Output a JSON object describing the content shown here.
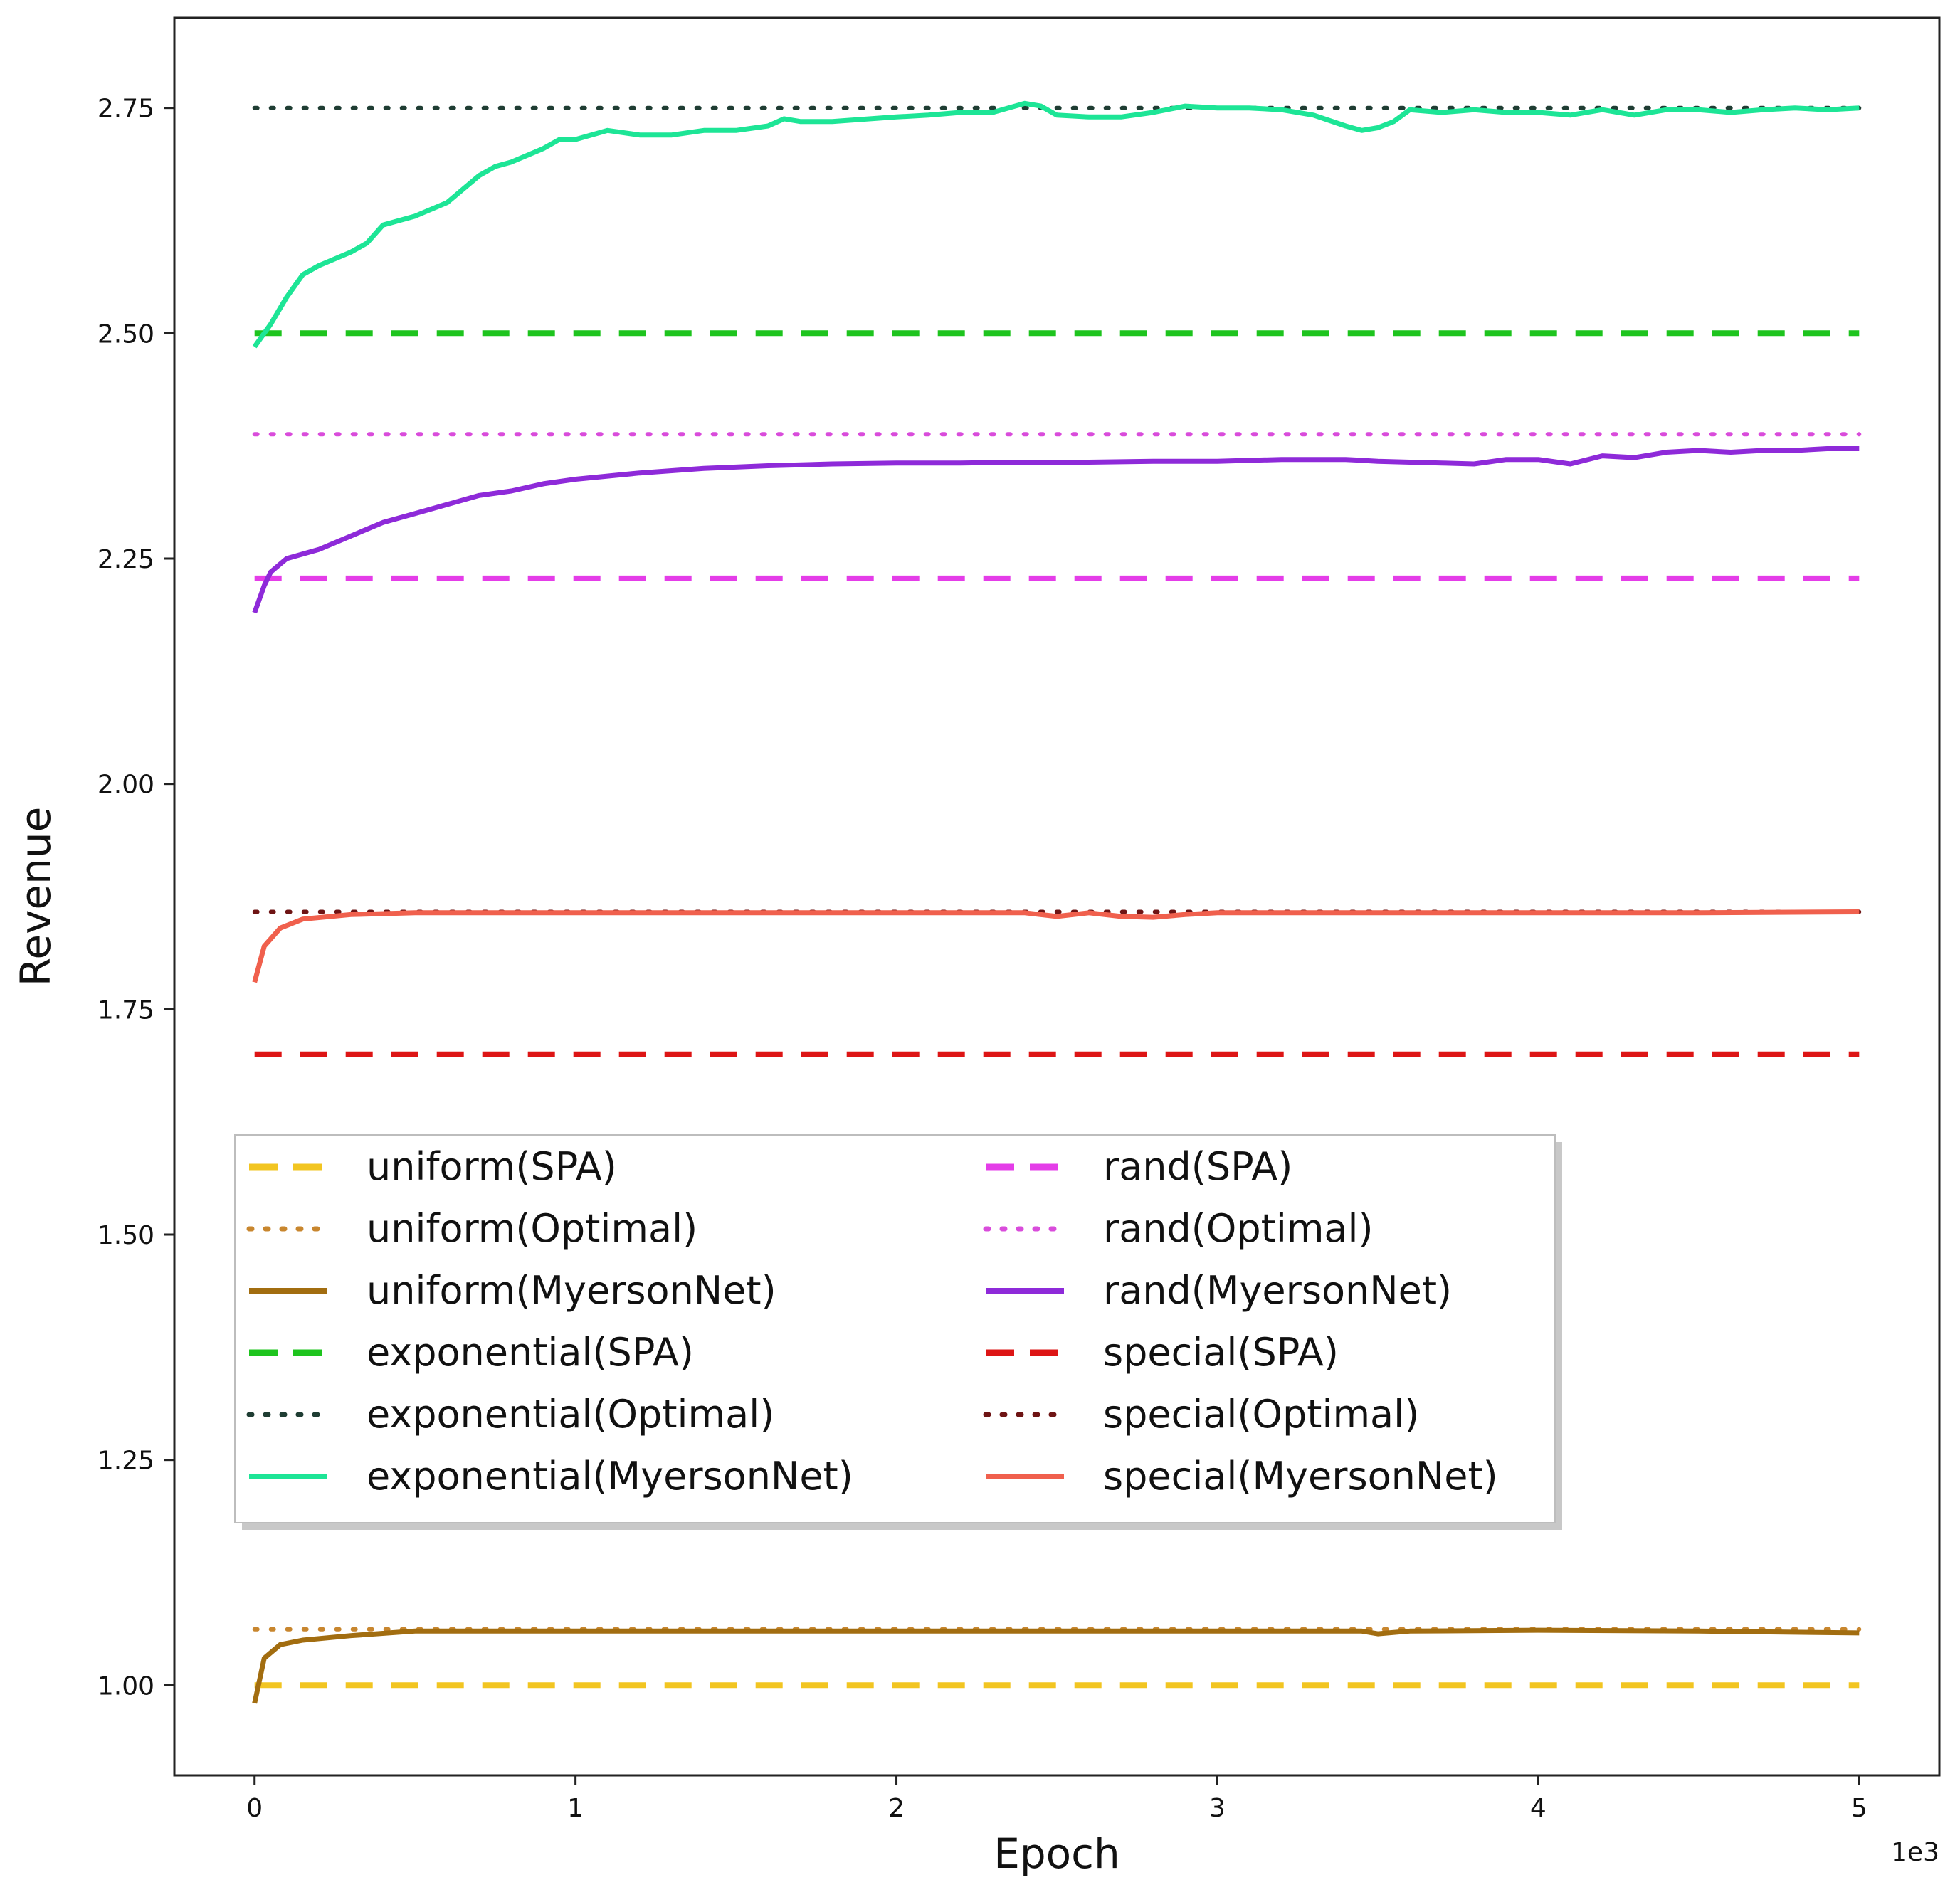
{
  "chart_data": {
    "type": "line",
    "title": "",
    "xlabel": "Epoch",
    "ylabel": "Revenue",
    "x_offset_label": "1e3",
    "xlim": [
      -0.25,
      5.25
    ],
    "ylim": [
      0.9,
      2.85
    ],
    "x_ticks": [
      0,
      1,
      2,
      3,
      4,
      5
    ],
    "x_tick_labels": [
      "0",
      "1",
      "2",
      "3",
      "4",
      "5"
    ],
    "y_ticks": [
      1.0,
      1.25,
      1.5,
      1.75,
      2.0,
      2.25,
      2.5,
      2.75
    ],
    "y_tick_labels": [
      "1.00",
      "1.25",
      "1.50",
      "1.75",
      "2.00",
      "2.25",
      "2.50",
      "2.75"
    ],
    "legend_position": "lower-left",
    "grid": false,
    "series": [
      {
        "name": "uniform(SPA)",
        "style": "dashed",
        "color": "#f2c521",
        "x": [
          0,
          5
        ],
        "y": [
          1.0,
          1.0
        ]
      },
      {
        "name": "uniform(Optimal)",
        "style": "dotted",
        "color": "#c8862e",
        "x": [
          0,
          5
        ],
        "y": [
          1.062,
          1.062
        ]
      },
      {
        "name": "uniform(MyersonNet)",
        "style": "solid",
        "color": "#a26d10",
        "x": [
          0,
          0.03,
          0.08,
          0.15,
          0.3,
          0.5,
          1.0,
          2.0,
          3.0,
          3.45,
          3.5,
          3.6,
          4.0,
          4.5,
          5.0
        ],
        "y": [
          0.98,
          1.03,
          1.045,
          1.05,
          1.055,
          1.06,
          1.06,
          1.06,
          1.06,
          1.06,
          1.057,
          1.06,
          1.061,
          1.06,
          1.058
        ]
      },
      {
        "name": "exponential(SPA)",
        "style": "dashed",
        "color": "#1ec41e",
        "x": [
          0,
          5
        ],
        "y": [
          2.5,
          2.5
        ]
      },
      {
        "name": "exponential(Optimal)",
        "style": "dotted",
        "color": "#1f3d33",
        "x": [
          0,
          5
        ],
        "y": [
          2.75,
          2.75
        ]
      },
      {
        "name": "exponential(MyersonNet)",
        "style": "solid",
        "color": "#1de596",
        "x": [
          0,
          0.05,
          0.1,
          0.15,
          0.2,
          0.3,
          0.35,
          0.4,
          0.45,
          0.5,
          0.6,
          0.65,
          0.7,
          0.75,
          0.8,
          0.9,
          0.95,
          1.0,
          1.1,
          1.2,
          1.3,
          1.4,
          1.5,
          1.6,
          1.65,
          1.7,
          1.8,
          2.0,
          2.1,
          2.2,
          2.3,
          2.4,
          2.45,
          2.5,
          2.6,
          2.7,
          2.8,
          2.9,
          3.0,
          3.1,
          3.2,
          3.3,
          3.4,
          3.45,
          3.5,
          3.55,
          3.6,
          3.7,
          3.8,
          3.9,
          4.0,
          4.1,
          4.2,
          4.3,
          4.4,
          4.5,
          4.6,
          4.7,
          4.8,
          4.9,
          5.0
        ],
        "y": [
          2.485,
          2.51,
          2.54,
          2.565,
          2.575,
          2.59,
          2.6,
          2.62,
          2.625,
          2.63,
          2.645,
          2.66,
          2.675,
          2.685,
          2.69,
          2.705,
          2.715,
          2.715,
          2.725,
          2.72,
          2.72,
          2.725,
          2.725,
          2.73,
          2.738,
          2.735,
          2.735,
          2.74,
          2.742,
          2.745,
          2.745,
          2.755,
          2.752,
          2.742,
          2.74,
          2.74,
          2.745,
          2.752,
          2.75,
          2.75,
          2.748,
          2.742,
          2.73,
          2.725,
          2.728,
          2.735,
          2.748,
          2.745,
          2.748,
          2.745,
          2.745,
          2.742,
          2.748,
          2.742,
          2.748,
          2.748,
          2.745,
          2.748,
          2.75,
          2.748,
          2.75
        ]
      },
      {
        "name": "rand(SPA)",
        "style": "dashed",
        "color": "#e43de8",
        "x": [
          0,
          5
        ],
        "y": [
          2.228,
          2.228
        ]
      },
      {
        "name": "rand(Optimal)",
        "style": "dotted",
        "color": "#d94cdb",
        "x": [
          0,
          5
        ],
        "y": [
          2.388,
          2.388
        ]
      },
      {
        "name": "rand(MyersonNet)",
        "style": "solid",
        "color": "#8e2ad9",
        "x": [
          0,
          0.03,
          0.05,
          0.1,
          0.2,
          0.3,
          0.4,
          0.5,
          0.6,
          0.7,
          0.8,
          0.9,
          1.0,
          1.2,
          1.4,
          1.6,
          1.8,
          2.0,
          2.2,
          2.4,
          2.6,
          2.8,
          3.0,
          3.2,
          3.4,
          3.5,
          3.6,
          3.7,
          3.8,
          3.9,
          4.0,
          4.1,
          4.2,
          4.3,
          4.4,
          4.5,
          4.6,
          4.7,
          4.8,
          4.9,
          5.0
        ],
        "y": [
          2.19,
          2.22,
          2.235,
          2.25,
          2.26,
          2.275,
          2.29,
          2.3,
          2.31,
          2.32,
          2.325,
          2.333,
          2.338,
          2.345,
          2.35,
          2.353,
          2.355,
          2.356,
          2.356,
          2.357,
          2.357,
          2.358,
          2.358,
          2.36,
          2.36,
          2.358,
          2.357,
          2.356,
          2.355,
          2.36,
          2.36,
          2.355,
          2.364,
          2.362,
          2.368,
          2.37,
          2.368,
          2.37,
          2.37,
          2.372,
          2.372
        ]
      },
      {
        "name": "special(SPA)",
        "style": "dashed",
        "color": "#dd1515",
        "x": [
          0,
          5
        ],
        "y": [
          1.7,
          1.7
        ]
      },
      {
        "name": "special(Optimal)",
        "style": "dotted",
        "color": "#6e1414",
        "x": [
          0,
          5
        ],
        "y": [
          1.858,
          1.858
        ]
      },
      {
        "name": "special(MyersonNet)",
        "style": "solid",
        "color": "#f0604d",
        "x": [
          0,
          0.03,
          0.08,
          0.15,
          0.3,
          0.5,
          1.0,
          2.0,
          2.4,
          2.5,
          2.6,
          2.7,
          2.8,
          2.9,
          3.0,
          3.5,
          4.0,
          4.5,
          5.0
        ],
        "y": [
          1.78,
          1.82,
          1.84,
          1.85,
          1.855,
          1.857,
          1.857,
          1.857,
          1.857,
          1.853,
          1.857,
          1.853,
          1.852,
          1.855,
          1.857,
          1.857,
          1.857,
          1.857,
          1.858
        ]
      }
    ],
    "legend_entries": [
      "uniform(SPA)",
      "uniform(Optimal)",
      "uniform(MyersonNet)",
      "exponential(SPA)",
      "exponential(Optimal)",
      "exponential(MyersonNet)",
      "rand(SPA)",
      "rand(Optimal)",
      "rand(MyersonNet)",
      "special(SPA)",
      "special(Optimal)",
      "special(MyersonNet)"
    ]
  }
}
